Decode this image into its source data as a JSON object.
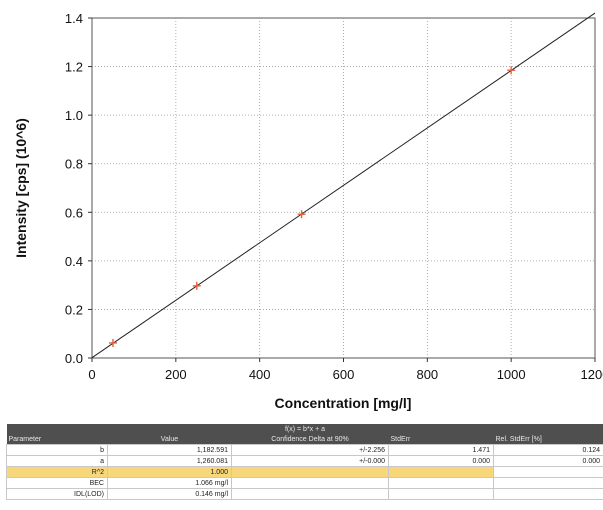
{
  "chart_data": {
    "type": "scatter",
    "xlabel": "Concentration [mg/l]",
    "ylabel": "Intensity [cps] (10^6)",
    "xlim": [
      0,
      1200
    ],
    "ylim": [
      0,
      1.4
    ],
    "xticks": [
      "0",
      "200",
      "400",
      "600",
      "800",
      "1000",
      "1200"
    ],
    "yticks": [
      "0.0",
      "0.2",
      "0.4",
      "0.6",
      "0.8",
      "1.0",
      "1.2",
      "1.4"
    ],
    "grid": true,
    "points": [
      {
        "x": 50,
        "y": 0.062
      },
      {
        "x": 250,
        "y": 0.297
      },
      {
        "x": 500,
        "y": 0.592
      },
      {
        "x": 1000,
        "y": 1.185
      }
    ],
    "fit": {
      "slope_millions_per_unit": 0.001182591,
      "intercept": 0.00126,
      "x_start": 0,
      "x_end": 1200
    },
    "marker_color": "#e8603a",
    "line_color": "#222222"
  },
  "table": {
    "formula": "f(x) = b*x + a",
    "headers": {
      "parameter": "Parameter",
      "value": "Value",
      "confidence": "Confidence Delta at 90%",
      "stderr": "StdErr",
      "relstderr": "Rel. StdErr [%]"
    },
    "rows": [
      {
        "param": "b",
        "value": "1,182.591",
        "conf": "+/-2.256",
        "stderr": "1.471",
        "rel": "0.124",
        "highlight": false
      },
      {
        "param": "a",
        "value": "1,260.081",
        "conf": "+/-0.000",
        "stderr": "0.000",
        "rel": "0.000",
        "highlight": false
      },
      {
        "param": "R^2",
        "value": "1.000",
        "conf": "",
        "stderr": "",
        "rel": "",
        "highlight": true
      },
      {
        "param": "BEC",
        "value": "1.066 mg/l",
        "conf": "",
        "stderr": "",
        "rel": "",
        "highlight": false
      },
      {
        "param": "IDL(LOD)",
        "value": "0.146 mg/l",
        "conf": "",
        "stderr": "",
        "rel": "",
        "highlight": false
      }
    ]
  }
}
